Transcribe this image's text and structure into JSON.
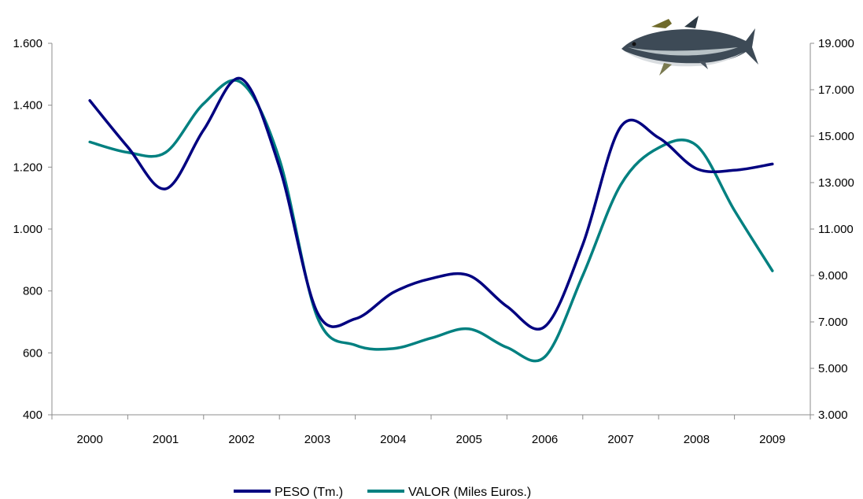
{
  "chart_data": {
    "type": "line",
    "title": "",
    "xlabel": "",
    "ylabel": "",
    "categories": [
      "2000",
      "2001",
      "2002",
      "2003",
      "2004",
      "2005",
      "2006",
      "2007",
      "2008",
      "2009"
    ],
    "ylim_left": [
      400,
      1600
    ],
    "ylim_right": [
      3000,
      19000
    ],
    "yticks_left": [
      "400",
      "600",
      "800",
      "1.000",
      "1.200",
      "1.400",
      "1.600"
    ],
    "yticks_right": [
      "3.000",
      "5.000",
      "7.000",
      "9.000",
      "11.000",
      "13.000",
      "15.000",
      "17.000",
      "19.000"
    ],
    "grid": false,
    "legend_position": "bottom",
    "series": [
      {
        "name": "PESO (Tm.)",
        "axis": "left",
        "color": "#000080",
        "x": [
          2000,
          2000.5,
          2001,
          2001.5,
          2002,
          2002.5,
          2003,
          2003.5,
          2004,
          2004.5,
          2005,
          2005.5,
          2006,
          2006.5,
          2007,
          2007.5,
          2008,
          2008.5,
          2009
        ],
        "values": [
          1415,
          1265,
          1130,
          1320,
          1485,
          1200,
          730,
          710,
          795,
          840,
          850,
          750,
          685,
          950,
          1330,
          1295,
          1195,
          1190,
          1210
        ]
      },
      {
        "name": "VALOR (Miles Euros.)",
        "axis": "right",
        "color": "#008080",
        "x": [
          2000,
          2000.5,
          2001,
          2001.5,
          2002,
          2002.5,
          2003,
          2003.5,
          2004,
          2004.5,
          2005,
          2005.5,
          2006,
          2006.5,
          2007,
          2007.5,
          2008,
          2008.5,
          2009
        ],
        "values": [
          14750,
          14300,
          14300,
          16400,
          17300,
          14000,
          7200,
          6000,
          5850,
          6300,
          6700,
          5900,
          5500,
          9000,
          12900,
          14500,
          14600,
          11800,
          9200
        ]
      }
    ]
  },
  "decoration": {
    "image": "tuna-fish-image"
  }
}
